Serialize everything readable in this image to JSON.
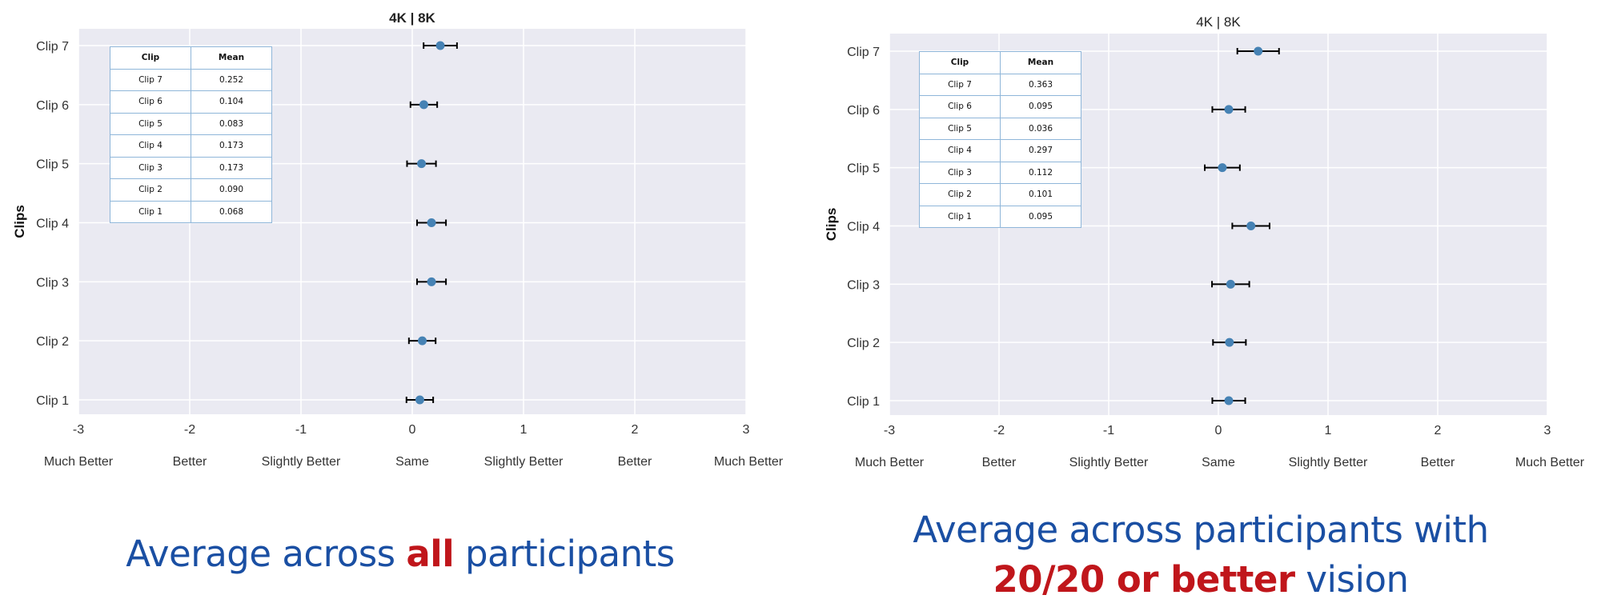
{
  "colors": {
    "plot_bg": "#eaeaf2",
    "grid": "#ffffff",
    "point": "#4682b4",
    "errorbar": "#000000",
    "caption_blue": "#1a4fa3",
    "caption_red": "#c0161b",
    "table_border": "#8fb6d9"
  },
  "chart_data": [
    {
      "type": "scatter",
      "title": "4K | 8K",
      "ylabel": "Clips",
      "xlabel": "",
      "xlim": [
        -3,
        3
      ],
      "x_ticks": [
        "-3",
        "-2",
        "-1",
        "0",
        "1",
        "2",
        "3"
      ],
      "x_tick_sublabels": [
        "Much Better",
        "Better",
        "Slightly Better",
        "Same",
        "Slightly Better",
        "Better",
        "Much Better"
      ],
      "categories": [
        "Clip 1",
        "Clip 2",
        "Clip 3",
        "Clip 4",
        "Clip 5",
        "Clip 6",
        "Clip 7"
      ],
      "values": [
        0.068,
        0.09,
        0.173,
        0.173,
        0.083,
        0.104,
        0.252
      ],
      "error": [
        0.12,
        0.12,
        0.13,
        0.13,
        0.13,
        0.12,
        0.15
      ],
      "grid": true,
      "table": {
        "headers": [
          "Clip",
          "Mean"
        ],
        "rows": [
          [
            "Clip 7",
            "0.252"
          ],
          [
            "Clip 6",
            "0.104"
          ],
          [
            "Clip 5",
            "0.083"
          ],
          [
            "Clip 4",
            "0.173"
          ],
          [
            "Clip 3",
            "0.173"
          ],
          [
            "Clip 2",
            "0.090"
          ],
          [
            "Clip 1",
            "0.068"
          ]
        ]
      }
    },
    {
      "type": "scatter",
      "title": "4K | 8K",
      "ylabel": "Clips",
      "xlabel": "",
      "xlim": [
        -3,
        3
      ],
      "x_ticks": [
        "-3",
        "-2",
        "-1",
        "0",
        "1",
        "2",
        "3"
      ],
      "x_tick_sublabels": [
        "Much Better",
        "Better",
        "Slightly Better",
        "Same",
        "Slightly Better",
        "Better",
        "Much Better"
      ],
      "categories": [
        "Clip 1",
        "Clip 2",
        "Clip 3",
        "Clip 4",
        "Clip 5",
        "Clip 6",
        "Clip 7"
      ],
      "values": [
        0.095,
        0.101,
        0.112,
        0.297,
        0.036,
        0.095,
        0.363
      ],
      "error": [
        0.15,
        0.15,
        0.17,
        0.17,
        0.16,
        0.15,
        0.19
      ],
      "grid": true,
      "table": {
        "headers": [
          "Clip",
          "Mean"
        ],
        "rows": [
          [
            "Clip 7",
            "0.363"
          ],
          [
            "Clip 6",
            "0.095"
          ],
          [
            "Clip 5",
            "0.036"
          ],
          [
            "Clip 4",
            "0.297"
          ],
          [
            "Clip 3",
            "0.112"
          ],
          [
            "Clip 2",
            "0.101"
          ],
          [
            "Clip 1",
            "0.095"
          ]
        ]
      }
    }
  ],
  "captions": {
    "left": {
      "before": "Average across ",
      "emphasis": "all",
      "after": " participants"
    },
    "right": {
      "line1": "Average across participants with",
      "emphasis": "20/20 or better",
      "after": " vision"
    }
  }
}
